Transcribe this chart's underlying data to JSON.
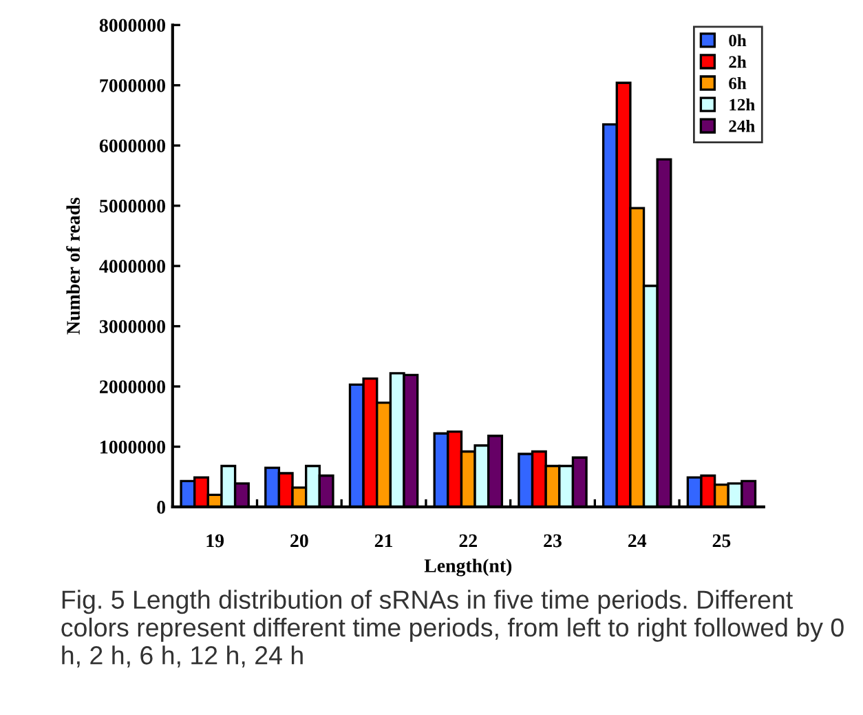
{
  "chart_data": {
    "type": "bar",
    "xlabel": "Length(nt)",
    "ylabel": "Number of reads",
    "categories": [
      "19",
      "20",
      "21",
      "22",
      "23",
      "24",
      "25"
    ],
    "series": [
      {
        "name": "0h",
        "color": "#3366ff",
        "values": [
          430000,
          650000,
          2030000,
          1220000,
          880000,
          6350000,
          490000
        ]
      },
      {
        "name": "2h",
        "color": "#ff0000",
        "values": [
          490000,
          560000,
          2130000,
          1250000,
          920000,
          7040000,
          520000
        ]
      },
      {
        "name": "6h",
        "color": "#ff9900",
        "values": [
          200000,
          320000,
          1730000,
          920000,
          680000,
          4960000,
          370000
        ]
      },
      {
        "name": "12h",
        "color": "#ccffff",
        "values": [
          680000,
          680000,
          2220000,
          1020000,
          680000,
          3670000,
          390000
        ]
      },
      {
        "name": "24h",
        "color": "#660066",
        "values": [
          390000,
          520000,
          2190000,
          1180000,
          820000,
          5770000,
          430000
        ]
      }
    ],
    "ylim": [
      0,
      8000000
    ],
    "yticks": [
      0,
      1000000,
      2000000,
      3000000,
      4000000,
      5000000,
      6000000,
      7000000,
      8000000
    ],
    "grid": false,
    "legend": "top right",
    "annotations": [
      "Fig. 5 Length distribution of sRNAs in five time periods. Different colors represent different time periods, from left to right followed by 0 h, 2 h, 6 h, 12 h, 24 h"
    ]
  }
}
